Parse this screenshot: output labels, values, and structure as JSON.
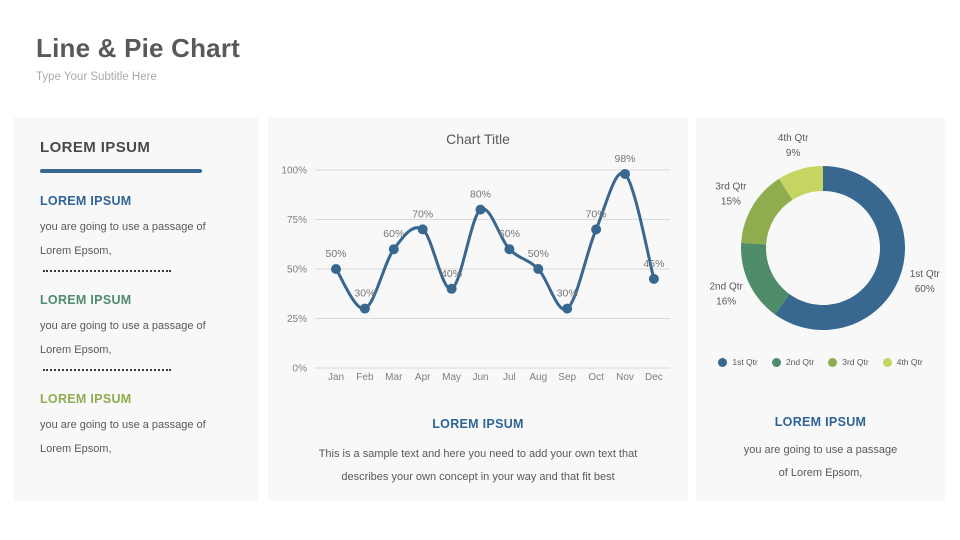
{
  "slide": {
    "title": "Line & Pie Chart",
    "subtitle": "Type Your Subtitle Here"
  },
  "colors": {
    "accent_blue": "#38678f",
    "heading_blue": "#2f6496",
    "green": "#4e8c6a",
    "olive": "#8fad4f",
    "lime": "#c6d562",
    "card_bg": "#f8f8f8",
    "grid": "#d9d9d9",
    "body_text": "#595959"
  },
  "left_panel": {
    "heading": "LOREM IPSUM",
    "sections": [
      {
        "heading": "LOREM IPSUM",
        "color": "#2f6496",
        "body": "you are going to use a passage of Lorem Epsom,",
        "separator_after": true
      },
      {
        "heading": "LOREM IPSUM",
        "color": "#4e8c6a",
        "body": "you are going to use a passage of Lorem Epsom,",
        "separator_after": true
      },
      {
        "heading": "LOREM IPSUM",
        "color": "#8fad4f",
        "body": "you are going to use a passage of Lorem Epsom,",
        "separator_after": false
      }
    ]
  },
  "chart_data": [
    {
      "type": "line",
      "title": "Chart Title",
      "x": [
        "Jan",
        "Feb",
        "Mar",
        "Apr",
        "May",
        "Jun",
        "Jul",
        "Aug",
        "Sep",
        "Oct",
        "Nov",
        "Dec"
      ],
      "values": [
        50,
        30,
        60,
        70,
        40,
        80,
        60,
        50,
        30,
        70,
        98,
        45
      ],
      "unit": "%",
      "ylim": [
        0,
        100
      ],
      "yticks": [
        0,
        25,
        50,
        75,
        100
      ],
      "grid": true,
      "smooth": true,
      "series_color": "#38678f",
      "point_labels": true,
      "legend_position": "none"
    },
    {
      "type": "pie",
      "donut": true,
      "categories": [
        "1st Qtr",
        "2nd Qtr",
        "3rd Qtr",
        "4th Qtr"
      ],
      "values": [
        60,
        16,
        15,
        9
      ],
      "unit": "%",
      "colors": [
        "#38678f",
        "#4e8c6a",
        "#8fad4f",
        "#c6d562"
      ],
      "start_angle_deg": 0,
      "direction": "clockwise",
      "legend_position": "bottom"
    }
  ],
  "middle_panel": {
    "heading": "LOREM IPSUM",
    "body_lines": [
      "This is a sample text and here you need to add your own text that",
      "describes your own concept in your way and that fit best"
    ]
  },
  "right_panel": {
    "heading": "LOREM IPSUM",
    "body_lines": [
      "you are going to use a passage",
      "of Lorem Epsom,"
    ]
  }
}
